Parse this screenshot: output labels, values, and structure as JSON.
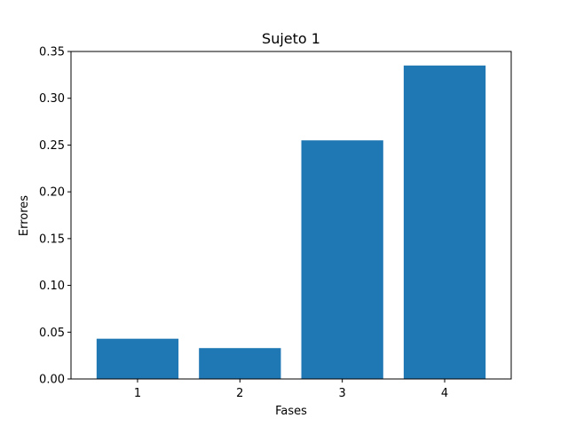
{
  "chart_data": {
    "type": "bar",
    "title": "Sujeto 1",
    "xlabel": "Fases",
    "ylabel": "Errores",
    "categories": [
      "1",
      "2",
      "3",
      "4"
    ],
    "values": [
      0.043,
      0.033,
      0.255,
      0.335
    ],
    "ylim": [
      0,
      0.35
    ],
    "yticks": [
      0.0,
      0.05,
      0.1,
      0.15,
      0.2,
      0.25,
      0.3,
      0.35
    ],
    "ytick_labels": [
      "0.00",
      "0.05",
      "0.10",
      "0.15",
      "0.20",
      "0.25",
      "0.30",
      "0.35"
    ],
    "bar_color": "#1f77b4",
    "grid": false,
    "legend": "none"
  }
}
